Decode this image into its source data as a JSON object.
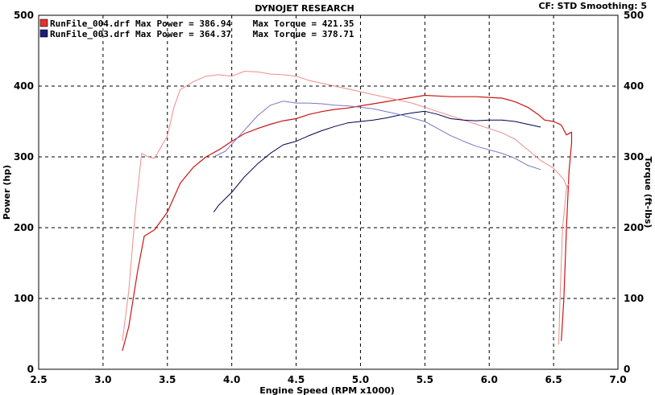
{
  "chart_data": {
    "type": "line",
    "title": "DYNOJET RESEARCH",
    "correction": "CF: STD  Smoothing: 5",
    "xlabel": "Engine Speed (RPM x1000)",
    "ylabel_left": "Power (hp)",
    "ylabel_right": "Torque (ft-lbs)",
    "xlim": [
      2.5,
      7.0
    ],
    "ylim": [
      0,
      500
    ],
    "x_ticks": [
      "2.5",
      "3.0",
      "3.5",
      "4.0",
      "4.5",
      "5.0",
      "5.5",
      "6.0",
      "6.5",
      "7.0"
    ],
    "y_ticks": [
      "0",
      "100",
      "200",
      "300",
      "400",
      "500"
    ],
    "grid": true,
    "legend_position": "top-left",
    "legend": [
      {
        "swatch_color": "#e83030",
        "text": "RunFile_004.drf Max Power = 386.94    Max Torque = 421.35"
      },
      {
        "swatch_color": "#1c1c78",
        "text": "RunFile_003.drf Max Power = 364.37    Max Torque = 378.71"
      }
    ],
    "series": [
      {
        "run": "RunFile_004.drf",
        "kind": "power",
        "color": "#cc1414",
        "width": 1.2,
        "points": [
          [
            3.15,
            26
          ],
          [
            3.2,
            60
          ],
          [
            3.27,
            140
          ],
          [
            3.32,
            188
          ],
          [
            3.4,
            197
          ],
          [
            3.5,
            222
          ],
          [
            3.6,
            263
          ],
          [
            3.7,
            285
          ],
          [
            3.8,
            300
          ],
          [
            3.9,
            310
          ],
          [
            4.0,
            322
          ],
          [
            4.1,
            333
          ],
          [
            4.2,
            340
          ],
          [
            4.3,
            346
          ],
          [
            4.4,
            351
          ],
          [
            4.5,
            354
          ],
          [
            4.6,
            360
          ],
          [
            4.7,
            364
          ],
          [
            4.8,
            367
          ],
          [
            4.9,
            369
          ],
          [
            5.0,
            372
          ],
          [
            5.1,
            375
          ],
          [
            5.2,
            378
          ],
          [
            5.3,
            381
          ],
          [
            5.4,
            384
          ],
          [
            5.5,
            386.9
          ],
          [
            5.6,
            386
          ],
          [
            5.7,
            385
          ],
          [
            5.8,
            385
          ],
          [
            5.9,
            385
          ],
          [
            6.0,
            384
          ],
          [
            6.1,
            383
          ],
          [
            6.2,
            378
          ],
          [
            6.3,
            370
          ],
          [
            6.38,
            360
          ],
          [
            6.43,
            352
          ],
          [
            6.5,
            350
          ],
          [
            6.56,
            345
          ],
          [
            6.6,
            331
          ],
          [
            6.64,
            335
          ],
          [
            6.64,
            320
          ],
          [
            6.62,
            280
          ],
          [
            6.6,
            200
          ],
          [
            6.58,
            100
          ],
          [
            6.56,
            40
          ]
        ]
      },
      {
        "run": "RunFile_004.drf",
        "kind": "torque",
        "color": "#ee8c8c",
        "width": 1.0,
        "points": [
          [
            3.15,
            40
          ],
          [
            3.2,
            110
          ],
          [
            3.25,
            220
          ],
          [
            3.3,
            305
          ],
          [
            3.35,
            300
          ],
          [
            3.4,
            298
          ],
          [
            3.5,
            330
          ],
          [
            3.55,
            370
          ],
          [
            3.6,
            395
          ],
          [
            3.7,
            406
          ],
          [
            3.8,
            414
          ],
          [
            3.9,
            416
          ],
          [
            4.0,
            414
          ],
          [
            4.1,
            421
          ],
          [
            4.2,
            420
          ],
          [
            4.3,
            417
          ],
          [
            4.4,
            416
          ],
          [
            4.5,
            414
          ],
          [
            4.6,
            408
          ],
          [
            4.7,
            404
          ],
          [
            4.8,
            400
          ],
          [
            4.9,
            396
          ],
          [
            5.0,
            392
          ],
          [
            5.1,
            388
          ],
          [
            5.2,
            384
          ],
          [
            5.3,
            380
          ],
          [
            5.4,
            376
          ],
          [
            5.5,
            370
          ],
          [
            5.6,
            364
          ],
          [
            5.7,
            358
          ],
          [
            5.8,
            352
          ],
          [
            5.9,
            346
          ],
          [
            6.0,
            340
          ],
          [
            6.1,
            334
          ],
          [
            6.2,
            325
          ],
          [
            6.3,
            310
          ],
          [
            6.4,
            295
          ],
          [
            6.5,
            284
          ],
          [
            6.58,
            268
          ],
          [
            6.6,
            258
          ],
          [
            6.62,
            262
          ],
          [
            6.6,
            255
          ],
          [
            6.57,
            200
          ],
          [
            6.55,
            100
          ],
          [
            6.54,
            35
          ]
        ]
      },
      {
        "run": "RunFile_003.drf",
        "kind": "power",
        "color": "#000050",
        "width": 1.0,
        "points": [
          [
            3.86,
            222
          ],
          [
            3.9,
            232
          ],
          [
            4.0,
            250
          ],
          [
            4.1,
            272
          ],
          [
            4.2,
            290
          ],
          [
            4.3,
            305
          ],
          [
            4.4,
            317
          ],
          [
            4.5,
            322
          ],
          [
            4.6,
            330
          ],
          [
            4.7,
            337
          ],
          [
            4.8,
            343
          ],
          [
            4.9,
            348
          ],
          [
            5.0,
            350
          ],
          [
            5.1,
            352
          ],
          [
            5.2,
            355
          ],
          [
            5.3,
            359
          ],
          [
            5.4,
            362
          ],
          [
            5.5,
            364.4
          ],
          [
            5.6,
            360
          ],
          [
            5.7,
            354
          ],
          [
            5.8,
            352
          ],
          [
            5.9,
            351
          ],
          [
            6.0,
            352
          ],
          [
            6.1,
            352
          ],
          [
            6.2,
            350
          ],
          [
            6.3,
            346
          ],
          [
            6.4,
            342
          ]
        ]
      },
      {
        "run": "RunFile_003.drf",
        "kind": "torque",
        "color": "#7878c0",
        "width": 1.0,
        "points": [
          [
            3.86,
            300
          ],
          [
            3.95,
            308
          ],
          [
            4.0,
            318
          ],
          [
            4.1,
            338
          ],
          [
            4.2,
            358
          ],
          [
            4.3,
            373
          ],
          [
            4.4,
            378.7
          ],
          [
            4.5,
            376
          ],
          [
            4.6,
            376
          ],
          [
            4.7,
            375
          ],
          [
            4.8,
            373
          ],
          [
            4.9,
            372
          ],
          [
            5.0,
            370
          ],
          [
            5.1,
            368
          ],
          [
            5.2,
            364
          ],
          [
            5.3,
            360
          ],
          [
            5.4,
            355
          ],
          [
            5.5,
            350
          ],
          [
            5.6,
            340
          ],
          [
            5.7,
            330
          ],
          [
            5.8,
            322
          ],
          [
            5.9,
            315
          ],
          [
            6.0,
            310
          ],
          [
            6.1,
            305
          ],
          [
            6.2,
            298
          ],
          [
            6.3,
            288
          ],
          [
            6.4,
            282
          ]
        ]
      }
    ]
  }
}
